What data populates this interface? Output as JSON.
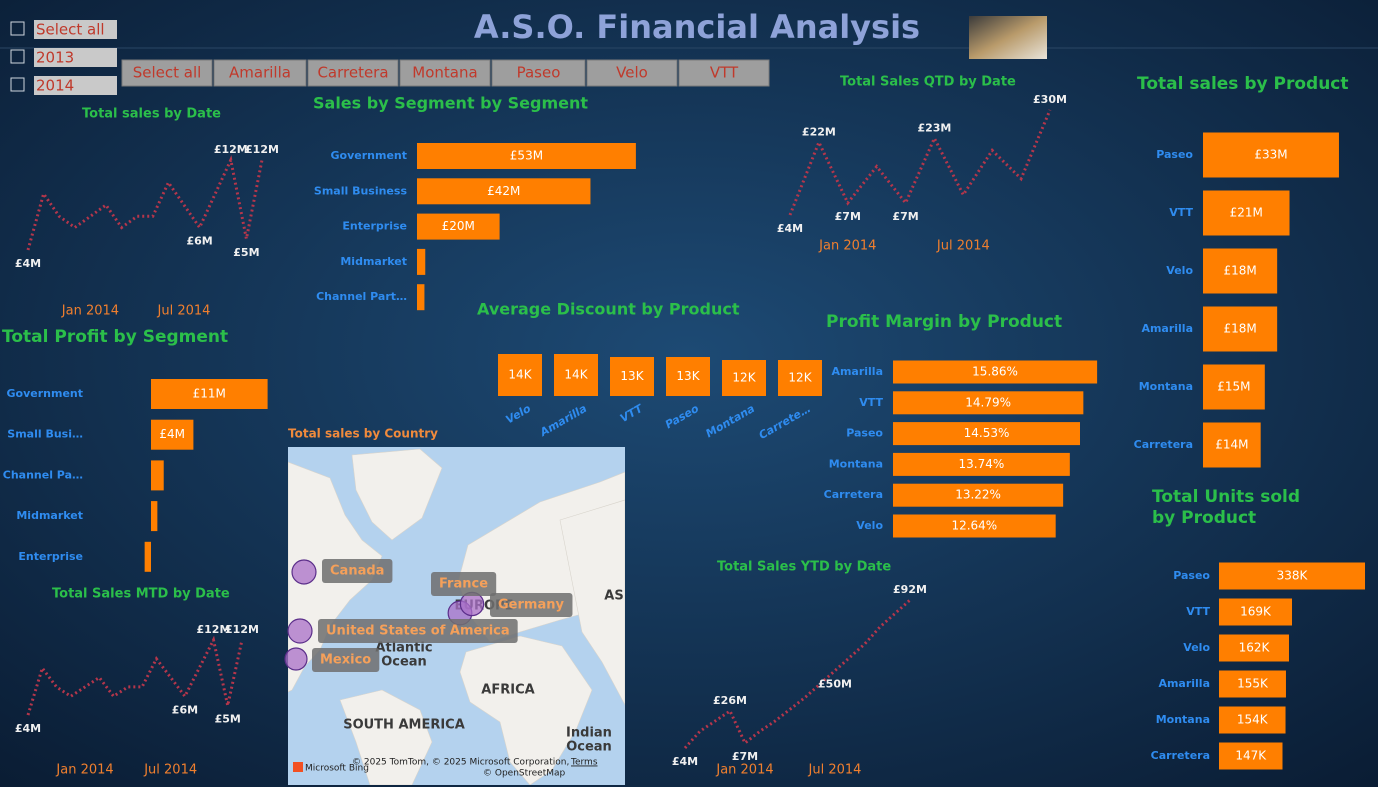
{
  "title": "A.S.O. Financial Analysis",
  "year_slicer": [
    "Select all",
    "2013",
    "2014"
  ],
  "product_slicer": [
    "Select all",
    "Amarilla",
    "Carretera",
    "Montana",
    "Paseo",
    "Velo",
    "VTT"
  ],
  "chart_data": [
    {
      "type": "line",
      "title": "Total sales by Date",
      "color": "#b5364b",
      "line_style": "dotted",
      "categories": [
        null,
        null,
        null,
        null,
        "Jan 2014",
        null,
        null,
        null,
        null,
        null,
        "Jul 2014",
        null,
        null,
        null,
        null,
        null
      ],
      "values": [
        4,
        9,
        7,
        6,
        7,
        8,
        6,
        7,
        7,
        10,
        8,
        6,
        9,
        12,
        5,
        12
      ],
      "value_labels": [
        "£4M",
        null,
        null,
        null,
        null,
        null,
        null,
        null,
        null,
        null,
        null,
        "£6M",
        null,
        "£12M",
        "£5M",
        "£12M"
      ]
    },
    {
      "type": "bar",
      "orientation": "horizontal",
      "title": "Sales by Segment by Segment",
      "color": "#ff7f00",
      "categories": [
        "Government",
        "Small Business",
        "Enterprise",
        "Midmarket",
        "Channel Part…"
      ],
      "values": [
        53,
        42,
        20,
        2,
        1.8
      ],
      "value_labels": [
        "£53M",
        "£42M",
        "£20M",
        null,
        null
      ]
    },
    {
      "type": "line",
      "title": "Total Sales QTD by Date",
      "color": "#b5364b",
      "line_style": "dotted",
      "categories": [
        null,
        null,
        "Jan 2014",
        null,
        null,
        null,
        "Jul 2014",
        null,
        null,
        null
      ],
      "values": [
        4,
        22,
        7,
        16,
        7,
        23,
        9,
        20,
        13,
        30
      ],
      "value_labels": [
        "£4M",
        "£22M",
        "£7M",
        null,
        "£7M",
        "£23M",
        null,
        null,
        null,
        "£30M"
      ]
    },
    {
      "type": "bar",
      "orientation": "horizontal",
      "title": "Total sales by Product",
      "color": "#ff7f00",
      "categories": [
        "Paseo",
        "VTT",
        "Velo",
        "Amarilla",
        "Montana",
        "Carretera"
      ],
      "values": [
        33,
        21,
        18,
        18,
        15,
        14
      ],
      "value_labels": [
        "£33M",
        "£21M",
        "£18M",
        "£18M",
        "£15M",
        "£14M"
      ]
    },
    {
      "type": "bar",
      "orientation": "horizontal",
      "title": "Total Profit by Segment",
      "color": "#ff7f00",
      "categories": [
        "Government",
        "Small Busi…",
        "Channel Pa…",
        "Midmarket",
        "Enterprise"
      ],
      "values": [
        11,
        4,
        1.2,
        0.6,
        -0.6
      ],
      "value_labels": [
        "£11M",
        "£4M",
        null,
        null,
        null
      ]
    },
    {
      "type": "bar",
      "orientation": "vertical",
      "title": "Average Discount by Product",
      "color": "#ff7f00",
      "categories": [
        "Velo",
        "Amarilla",
        "VTT",
        "Paseo",
        "Montana",
        "Carrete…"
      ],
      "values": [
        14,
        14,
        13,
        13,
        12,
        12
      ],
      "value_labels": [
        "14K",
        "14K",
        "13K",
        "13K",
        "12K",
        "12K"
      ]
    },
    {
      "type": "bar",
      "orientation": "horizontal",
      "title": "Profit Margin by Product",
      "color": "#ff7f00",
      "categories": [
        "Amarilla",
        "VTT",
        "Paseo",
        "Montana",
        "Carretera",
        "Velo"
      ],
      "values": [
        15.86,
        14.79,
        14.53,
        13.74,
        13.22,
        12.64
      ],
      "value_labels": [
        "15.86%",
        "14.79%",
        "14.53%",
        "13.74%",
        "13.22%",
        "12.64%"
      ]
    },
    {
      "type": "map",
      "title": "Total sales by Country",
      "color": "#a970c8",
      "categories": [
        "Canada",
        "France",
        "Germany",
        "United States of America",
        "Mexico"
      ],
      "values": [
        24.89,
        24.35,
        23.51,
        25.03,
        20.95
      ],
      "annotations": [
        "EUROPE",
        "AS",
        "Atlantic",
        "Ocean",
        "AFRICA",
        "SOUTH AMERICA",
        "Indian",
        "Ocean"
      ],
      "attribution": [
        "© 2025 TomTom, © 2025 Microsoft Corporation,",
        "Terms",
        "© OpenStreetMap",
        "Microsoft Bing"
      ]
    },
    {
      "type": "bar",
      "orientation": "horizontal",
      "title": "Total Units sold by Product",
      "color": "#ff7f00",
      "categories": [
        "Paseo",
        "VTT",
        "Velo",
        "Amarilla",
        "Montana",
        "Carretera"
      ],
      "values": [
        338,
        169,
        162,
        155,
        154,
        147
      ],
      "value_labels": [
        "338K",
        "169K",
        "162K",
        "155K",
        "154K",
        "147K"
      ]
    },
    {
      "type": "line",
      "title": "Total Sales MTD by Date",
      "color": "#b5364b",
      "line_style": "dotted",
      "categories": [
        null,
        null,
        null,
        null,
        "Jan 2014",
        null,
        null,
        null,
        null,
        null,
        "Jul 2014",
        null,
        null,
        null,
        null,
        null
      ],
      "values": [
        4,
        9,
        7,
        6,
        7,
        8,
        6,
        7,
        7,
        10,
        8,
        6,
        9,
        12,
        5,
        12
      ],
      "value_labels": [
        "£4M",
        null,
        null,
        null,
        null,
        null,
        null,
        null,
        null,
        null,
        null,
        "£6M",
        null,
        "£12M",
        "£5M",
        "£12M"
      ]
    },
    {
      "type": "line",
      "title": "Total Sales YTD by Date",
      "color": "#b5364b",
      "line_style": "dotted",
      "categories": [
        null,
        null,
        null,
        null,
        "Jan 2014",
        null,
        null,
        null,
        null,
        null,
        "Jul 2014",
        null,
        null,
        null,
        null,
        null
      ],
      "values": [
        4,
        14,
        20,
        26,
        7,
        14,
        20,
        27,
        34,
        42,
        50,
        58,
        66,
        76,
        84,
        92
      ],
      "value_labels": [
        "£4M",
        null,
        null,
        "£26M",
        "£7M",
        null,
        null,
        null,
        null,
        null,
        "£50M",
        null,
        null,
        null,
        null,
        "£92M"
      ]
    }
  ]
}
